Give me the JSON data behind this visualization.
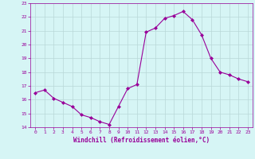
{
  "x": [
    0,
    1,
    2,
    3,
    4,
    5,
    6,
    7,
    8,
    9,
    10,
    11,
    12,
    13,
    14,
    15,
    16,
    17,
    18,
    19,
    20,
    21,
    22,
    23
  ],
  "y": [
    16.5,
    16.7,
    16.1,
    15.8,
    15.5,
    14.9,
    14.7,
    14.4,
    14.2,
    15.5,
    16.8,
    17.1,
    20.9,
    21.2,
    21.9,
    22.1,
    22.4,
    21.8,
    20.7,
    19.0,
    18.0,
    17.8,
    17.5,
    17.3
  ],
  "line_color": "#990099",
  "marker": "D",
  "marker_size": 2.0,
  "bg_color": "#d6f5f5",
  "grid_color": "#b8d8d8",
  "xlabel": "Windchill (Refroidissement éolien,°C)",
  "xlabel_color": "#990099",
  "tick_color": "#990099",
  "ylim": [
    14,
    23
  ],
  "xlim": [
    -0.5,
    23.5
  ],
  "yticks": [
    14,
    15,
    16,
    17,
    18,
    19,
    20,
    21,
    22,
    23
  ],
  "xticks": [
    0,
    1,
    2,
    3,
    4,
    5,
    6,
    7,
    8,
    9,
    10,
    11,
    12,
    13,
    14,
    15,
    16,
    17,
    18,
    19,
    20,
    21,
    22,
    23
  ]
}
